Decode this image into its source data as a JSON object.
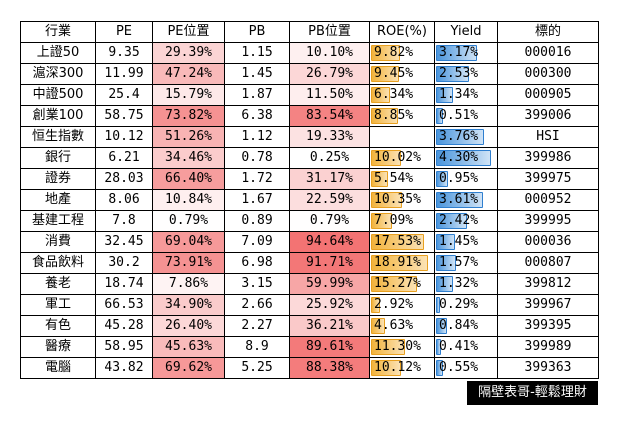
{
  "columns": [
    "行業",
    "PE",
    "PE位置",
    "PB",
    "PB位置",
    "ROE(%)",
    "Yield",
    "標的"
  ],
  "colors": {
    "heat_low": "#ffffff",
    "heat_high": "#f26b6b",
    "roe_bar": "#f2b33c",
    "yield_bar": "#4a95dc"
  },
  "scales": {
    "roe_max": 20,
    "yield_max": 4.5
  },
  "rows": [
    {
      "name": "上證50",
      "pe": "9.35",
      "pe_pct": "29.39%",
      "pe_v": 29.39,
      "pb": "1.15",
      "pb_pct": "10.10%",
      "pb_v": 10.1,
      "roe": "9.82%",
      "roe_v": 9.82,
      "yield": "3.17%",
      "yield_v": 3.17,
      "code": "000016"
    },
    {
      "name": "滬深300",
      "pe": "11.99",
      "pe_pct": "47.24%",
      "pe_v": 47.24,
      "pb": "1.45",
      "pb_pct": "26.79%",
      "pb_v": 26.79,
      "roe": "9.45%",
      "roe_v": 9.45,
      "yield": "2.53%",
      "yield_v": 2.53,
      "code": "000300"
    },
    {
      "name": "中證500",
      "pe": "25.4",
      "pe_pct": "15.79%",
      "pe_v": 15.79,
      "pb": "1.87",
      "pb_pct": "11.50%",
      "pb_v": 11.5,
      "roe": "6.34%",
      "roe_v": 6.34,
      "yield": "1.34%",
      "yield_v": 1.34,
      "code": "000905"
    },
    {
      "name": "創業100",
      "pe": "58.75",
      "pe_pct": "73.82%",
      "pe_v": 73.82,
      "pb": "6.38",
      "pb_pct": "83.54%",
      "pb_v": 83.54,
      "roe": "8.85%",
      "roe_v": 8.85,
      "yield": "0.51%",
      "yield_v": 0.51,
      "code": "399006"
    },
    {
      "name": "恒生指數",
      "pe": "10.12",
      "pe_pct": "51.26%",
      "pe_v": 51.26,
      "pb": "1.12",
      "pb_pct": "19.33%",
      "pb_v": 19.33,
      "roe": "",
      "roe_v": 0,
      "yield": "3.76%",
      "yield_v": 3.76,
      "code": "HSI"
    },
    {
      "name": "銀行",
      "pe": "6.21",
      "pe_pct": "34.46%",
      "pe_v": 34.46,
      "pb": "0.78",
      "pb_pct": "0.25%",
      "pb_v": 0.25,
      "roe": "10.02%",
      "roe_v": 10.02,
      "yield": "4.30%",
      "yield_v": 4.3,
      "code": "399986"
    },
    {
      "name": "證券",
      "pe": "28.03",
      "pe_pct": "66.40%",
      "pe_v": 66.4,
      "pb": "1.72",
      "pb_pct": "31.17%",
      "pb_v": 31.17,
      "roe": "5.54%",
      "roe_v": 5.54,
      "yield": "0.95%",
      "yield_v": 0.95,
      "code": "399975"
    },
    {
      "name": "地產",
      "pe": "8.06",
      "pe_pct": "10.84%",
      "pe_v": 10.84,
      "pb": "1.67",
      "pb_pct": "22.59%",
      "pb_v": 22.59,
      "roe": "10.35%",
      "roe_v": 10.35,
      "yield": "3.61%",
      "yield_v": 3.61,
      "code": "000952"
    },
    {
      "name": "基建工程",
      "pe": "7.8",
      "pe_pct": "0.79%",
      "pe_v": 0.79,
      "pb": "0.89",
      "pb_pct": "0.79%",
      "pb_v": 0.79,
      "roe": "7.09%",
      "roe_v": 7.09,
      "yield": "2.42%",
      "yield_v": 2.42,
      "code": "399995"
    },
    {
      "name": "消費",
      "pe": "32.45",
      "pe_pct": "69.04%",
      "pe_v": 69.04,
      "pb": "7.09",
      "pb_pct": "94.64%",
      "pb_v": 94.64,
      "roe": "17.53%",
      "roe_v": 17.53,
      "yield": "1.45%",
      "yield_v": 1.45,
      "code": "000036"
    },
    {
      "name": "食品飲料",
      "pe": "30.2",
      "pe_pct": "73.91%",
      "pe_v": 73.91,
      "pb": "6.98",
      "pb_pct": "91.71%",
      "pb_v": 91.71,
      "roe": "18.91%",
      "roe_v": 18.91,
      "yield": "1.57%",
      "yield_v": 1.57,
      "code": "000807"
    },
    {
      "name": "養老",
      "pe": "18.74",
      "pe_pct": "7.86%",
      "pe_v": 7.86,
      "pb": "3.15",
      "pb_pct": "59.99%",
      "pb_v": 59.99,
      "roe": "15.27%",
      "roe_v": 15.27,
      "yield": "1.32%",
      "yield_v": 1.32,
      "code": "399812"
    },
    {
      "name": "軍工",
      "pe": "66.53",
      "pe_pct": "34.90%",
      "pe_v": 34.9,
      "pb": "2.66",
      "pb_pct": "25.92%",
      "pb_v": 25.92,
      "roe": "2.92%",
      "roe_v": 2.92,
      "yield": "0.29%",
      "yield_v": 0.29,
      "code": "399967"
    },
    {
      "name": "有色",
      "pe": "45.28",
      "pe_pct": "26.40%",
      "pe_v": 26.4,
      "pb": "2.27",
      "pb_pct": "36.21%",
      "pb_v": 36.21,
      "roe": "4.63%",
      "roe_v": 4.63,
      "yield": "0.84%",
      "yield_v": 0.84,
      "code": "399395"
    },
    {
      "name": "醫療",
      "pe": "58.95",
      "pe_pct": "45.63%",
      "pe_v": 45.63,
      "pb": "8.9",
      "pb_pct": "89.61%",
      "pb_v": 89.61,
      "roe": "11.30%",
      "roe_v": 11.3,
      "yield": "0.41%",
      "yield_v": 0.41,
      "code": "399989"
    },
    {
      "name": "電腦",
      "pe": "43.82",
      "pe_pct": "69.62%",
      "pe_v": 69.62,
      "pb": "5.25",
      "pb_pct": "88.38%",
      "pb_v": 88.38,
      "roe": "10.12%",
      "roe_v": 10.12,
      "yield": "0.55%",
      "yield_v": 0.55,
      "code": "399363"
    }
  ],
  "watermark": "隔壁表哥-輕鬆理財"
}
